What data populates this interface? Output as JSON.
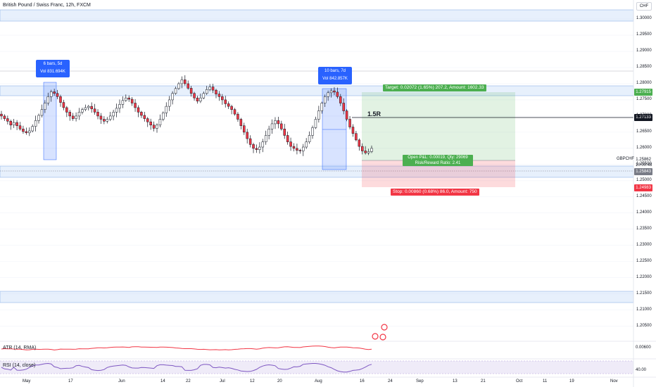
{
  "title": "British Pound / Swiss Franc, 12h, FXCM",
  "currency": "CHF",
  "symbol": "GBPCHF",
  "last_price": "1.25862",
  "countdown": "10:00:48",
  "price_axis": [
    "1.30000",
    "1.29500",
    "1.29000",
    "1.28500",
    "1.28000",
    "1.27500",
    "1.27000",
    "1.26500",
    "1.26000",
    "1.25500",
    "1.25000",
    "1.24500",
    "1.24000",
    "1.23500",
    "1.23000",
    "1.22500",
    "1.22000",
    "1.21500",
    "1.21000",
    "1.20500"
  ],
  "price_tags": {
    "target": "1.27915",
    "r_level": "1.27133",
    "entry": "1.25843",
    "stop": "1.24983"
  },
  "time_axis": [
    "May",
    "17",
    "Jun",
    "14",
    "22",
    "Jul",
    "12",
    "20",
    "Aug",
    "16",
    "24",
    "Sep",
    "13",
    "21",
    "Oct",
    "11",
    "19",
    "Nov"
  ],
  "range_boxes": [
    {
      "bars": "6 bars, 5d",
      "vol": "Vol 831.694K"
    },
    {
      "bars": "10 bars, 7d",
      "vol": "Vol 842.857K"
    }
  ],
  "position": {
    "target_label": "Target: 0.02072 (1.65%) 207.2, Amount: 1602.33",
    "stop_label": "Stop: 0.00860 (0.68%) 86.0, Amount: 750",
    "pnl_line1": "Open P&L: 0.00019, Qty: 29069",
    "pnl_line2": "Risk/Reward Ratio: 2.41",
    "r_label": "1.5R"
  },
  "atr": {
    "label": "ATR (14, RMA)",
    "value": "0.00600"
  },
  "rsi": {
    "label": "RSI (14, close)",
    "value": "40.00"
  },
  "colors": {
    "up": "#ffffff",
    "down": "#f23645",
    "wick": "#131722",
    "zone": "#bbd3f5",
    "target_fill": "#e3f2e3",
    "stop_fill": "#fcdcdd",
    "stat_box": "#2962ff",
    "atr_line": "#f23645",
    "rsi_line": "#7e57c2",
    "rsi_band": "#f3e5f5"
  },
  "chart_data": {
    "type": "candlestick",
    "title": "British Pound / Swiss Franc, 12h, FXCM",
    "y_range": [
      1.2025,
      1.3035
    ],
    "close_series": [
      1.27,
      1.2692,
      1.2684,
      1.2672,
      1.268,
      1.267,
      1.266,
      1.2652,
      1.2648,
      1.2654,
      1.2668,
      1.2686,
      1.2702,
      1.272,
      1.274,
      1.276,
      1.2775,
      1.277,
      1.276,
      1.2742,
      1.2726,
      1.2712,
      1.27,
      1.2692,
      1.27,
      1.2712,
      1.272,
      1.2726,
      1.273,
      1.2722,
      1.2712,
      1.27,
      1.269,
      1.2684,
      1.269,
      1.27,
      1.2712,
      1.2724,
      1.2736,
      1.2748,
      1.2756,
      1.2752,
      1.274,
      1.2726,
      1.2712,
      1.2702,
      1.2692,
      1.2682,
      1.2672,
      1.2662,
      1.2672,
      1.269,
      1.271,
      1.273,
      1.275,
      1.277,
      1.2785,
      1.28,
      1.2812,
      1.28,
      1.2786,
      1.277,
      1.2756,
      1.2746,
      1.2756,
      1.277,
      1.2782,
      1.279,
      1.278,
      1.2768,
      1.276,
      1.275,
      1.2738,
      1.273,
      1.272,
      1.2706,
      1.269,
      1.267,
      1.265,
      1.263,
      1.2612,
      1.26,
      1.2596,
      1.2604,
      1.262,
      1.264,
      1.266,
      1.2676,
      1.2686,
      1.2676,
      1.266,
      1.264,
      1.262,
      1.2606,
      1.26,
      1.2594,
      1.2592,
      1.2604,
      1.262,
      1.264,
      1.2664,
      1.269,
      1.2716,
      1.274,
      1.276,
      1.2772,
      1.2778,
      1.2774,
      1.276,
      1.274,
      1.2716,
      1.269,
      1.2666,
      1.2646,
      1.2626,
      1.2606,
      1.2592,
      1.2586,
      1.259,
      1.26
    ],
    "series": [
      {
        "name": "ATR (14, RMA)",
        "value": 0.006
      },
      {
        "name": "RSI (14, close)",
        "value": 40.0
      }
    ]
  }
}
